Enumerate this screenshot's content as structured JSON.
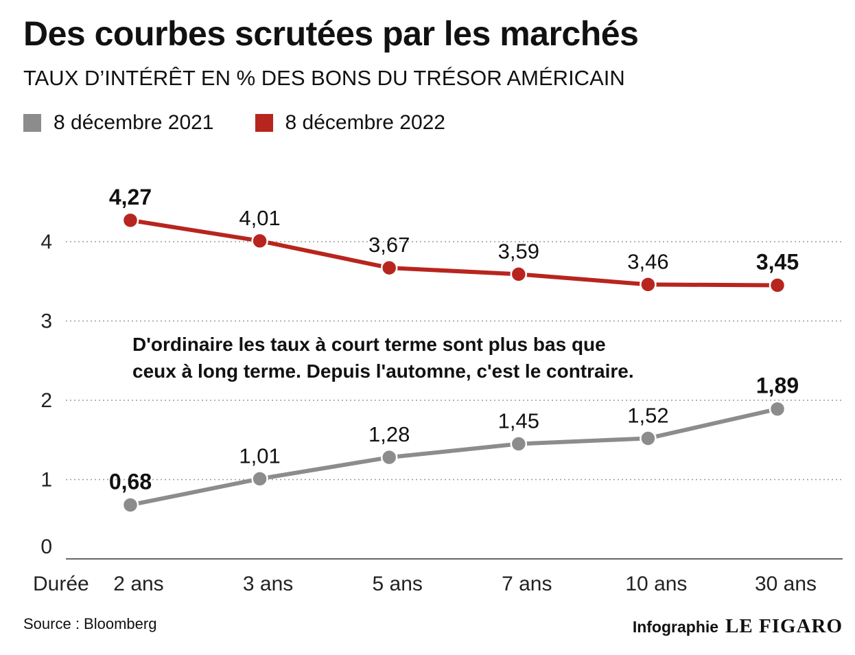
{
  "header": {
    "title": "Des courbes scrutées par les marchés",
    "subtitle": "TAUX D’INTÉRÊT EN % DES BONS DU TRÉSOR AMÉRICAIN"
  },
  "legend": [
    {
      "label": "8 décembre 2021",
      "color": "#8c8c8c"
    },
    {
      "label": "8 décembre 2022",
      "color": "#b8251e"
    }
  ],
  "annotation": {
    "line1": "D'ordinaire les taux à court terme sont plus bas que",
    "line2": "ceux à long terme. Depuis l'automne, c'est le contraire."
  },
  "footer": {
    "source": "Source : Bloomberg",
    "credit_label": "Infographie",
    "credit_brand": "LE FIGARO"
  },
  "chart_data": {
    "type": "line",
    "xlabel": "Durée",
    "ylabel": "",
    "categories": [
      "2 ans",
      "3 ans",
      "5 ans",
      "7 ans",
      "10 ans",
      "30 ans"
    ],
    "ylim": [
      0,
      4.5
    ],
    "yticks": [
      0,
      1,
      2,
      3,
      4
    ],
    "grid": true,
    "series": [
      {
        "name": "8 décembre 2021",
        "color": "#8c8c8c",
        "values": [
          0.68,
          1.01,
          1.28,
          1.45,
          1.52,
          1.89
        ],
        "labels": [
          "0,68",
          "1,01",
          "1,28",
          "1,45",
          "1,52",
          "1,89"
        ],
        "bold_labels": [
          true,
          false,
          false,
          false,
          false,
          true
        ]
      },
      {
        "name": "8 décembre 2022",
        "color": "#b8251e",
        "values": [
          4.27,
          4.01,
          3.67,
          3.59,
          3.46,
          3.45
        ],
        "labels": [
          "4,27",
          "4,01",
          "3,67",
          "3,59",
          "3,46",
          "3,45"
        ],
        "bold_labels": [
          true,
          false,
          false,
          false,
          false,
          true
        ]
      }
    ]
  }
}
